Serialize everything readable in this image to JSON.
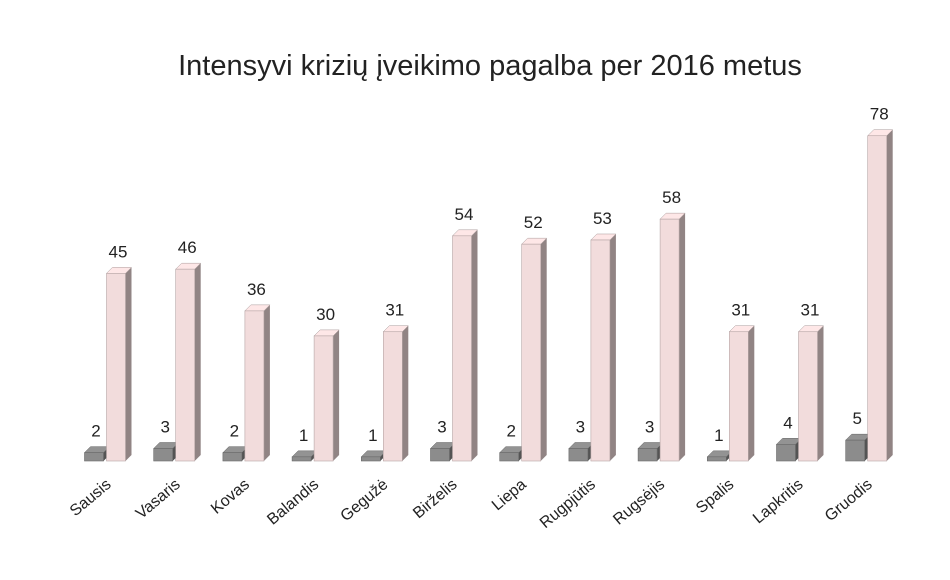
{
  "chart_data": {
    "type": "bar3d",
    "title": "Intensyvi krizių įveikimo pagalba per 2016 metus",
    "categories": [
      "Sausis",
      "Vasaris",
      "Kovas",
      "Balandis",
      "Gegužė",
      "Birželis",
      "Liepa",
      "Rugpjūtis",
      "Rugsėjis",
      "Spalis",
      "Lapkritis",
      "Gruodis"
    ],
    "series": [
      {
        "color": "#8c8c8c",
        "values": [
          2,
          3,
          2,
          1,
          1,
          3,
          2,
          3,
          3,
          1,
          4,
          5
        ]
      },
      {
        "color": "#f2dcdc",
        "values": [
          45,
          46,
          36,
          30,
          31,
          54,
          52,
          53,
          58,
          31,
          31,
          78
        ]
      }
    ]
  }
}
